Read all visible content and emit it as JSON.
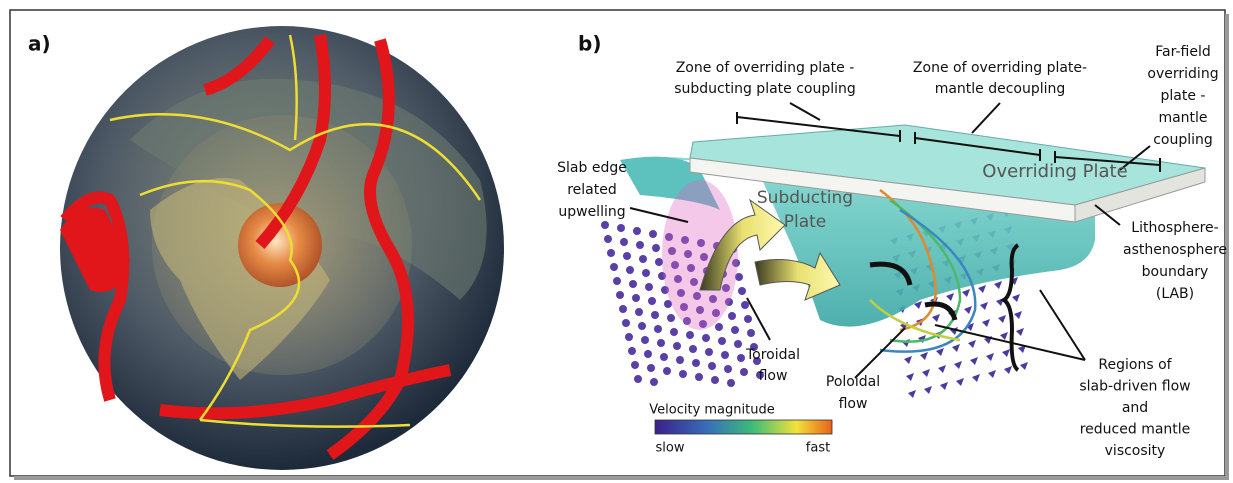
{
  "panels": [
    {
      "label": "a)"
    },
    {
      "label": "b)",
      "annotations": [
        {
          "lines": [
            "Zone of overriding plate -",
            "subducting plate coupling"
          ]
        },
        {
          "lines": [
            "Zone of overriding plate-",
            "mantle decoupling"
          ]
        },
        {
          "lines": [
            "Far-field",
            "overriding",
            "plate -",
            "mantle",
            "coupling"
          ]
        },
        {
          "lines": [
            "Slab edge",
            "related",
            "upwelling"
          ]
        },
        {
          "lines": [
            "Subducting",
            "Plate"
          ]
        },
        {
          "lines": [
            "Overriding Plate"
          ]
        },
        {
          "lines": [
            "Lithosphere-",
            "asthenosphere",
            "boundary",
            "(LAB)"
          ]
        },
        {
          "lines": [
            "Toroidal",
            "flow"
          ]
        },
        {
          "lines": [
            "Poloidal",
            "flow"
          ]
        },
        {
          "lines": [
            "Regions of",
            "slab-driven flow",
            "and",
            "reduced mantle",
            "viscosity"
          ]
        }
      ],
      "colorbar": {
        "title": "Velocity magnitude",
        "min_label": "slow",
        "max_label": "fast"
      }
    }
  ]
}
